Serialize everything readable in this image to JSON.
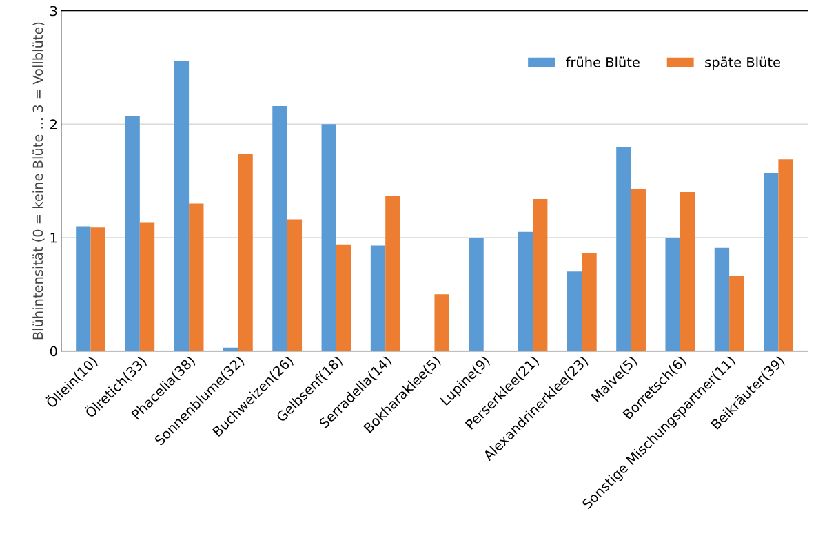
{
  "chart_data": {
    "type": "bar",
    "ylabel": "Blühintensität (0 = keine Blüte ... 3 = Vollblüte)",
    "categories": [
      "Öllein(10)",
      "Ölretich(33)",
      "Phacelia(38)",
      "Sonnenblume(32)",
      "Buchweizen(26)",
      "Gelbsenf(18)",
      "Serradella(14)",
      "Bokharaklee(5)",
      "Lupine(9)",
      "Perserklee(21)",
      "Alexandrinerklee(23)",
      "Malve(5)",
      "Borretsch(6)",
      "Sonstige Mischungspartner(11)",
      "Beikräuter(39)"
    ],
    "series": [
      {
        "name": "frühe Blüte",
        "color": "#5b9bd5",
        "values": [
          1.1,
          2.07,
          2.56,
          0.03,
          2.16,
          2.0,
          0.93,
          0,
          1.0,
          1.05,
          0.7,
          1.8,
          1.0,
          0.91,
          1.57
        ]
      },
      {
        "name": "späte Blüte",
        "color": "#ed7d31",
        "values": [
          1.09,
          1.13,
          1.3,
          1.74,
          1.16,
          0.94,
          1.37,
          0.5,
          0,
          1.34,
          0.86,
          1.43,
          1.4,
          0.66,
          1.69
        ]
      }
    ],
    "ylim": [
      0,
      3
    ],
    "yticks": [
      0,
      1,
      2,
      3
    ],
    "grid": "y",
    "legend": "top right"
  }
}
